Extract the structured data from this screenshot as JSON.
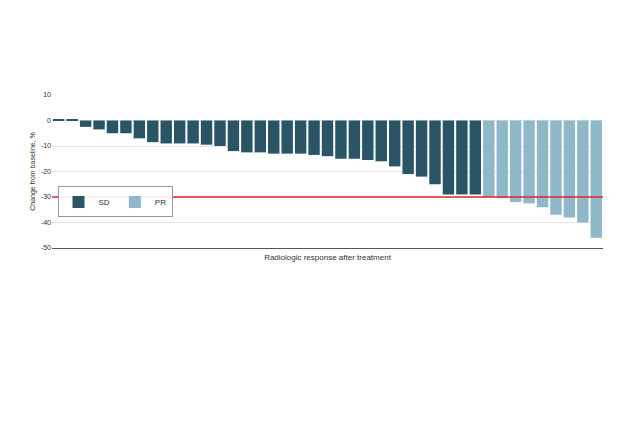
{
  "chart_data": {
    "type": "bar",
    "x_label": "Radiologic response after treatment",
    "y_label": "Change from baseline, %",
    "categories": [
      null,
      null,
      null,
      null,
      null,
      null,
      null,
      null,
      null,
      null,
      null,
      null,
      null,
      null,
      null,
      null,
      null,
      null,
      null,
      null,
      null,
      null,
      null,
      null,
      null,
      null,
      null,
      null,
      null,
      null,
      null,
      null,
      null,
      null,
      null,
      null,
      null,
      null,
      null,
      null,
      null
    ],
    "series": [
      {
        "name": "SD",
        "color": "#2a5566",
        "values": [
          0.5,
          0.2,
          -2.5,
          -3.5,
          -5,
          -5,
          -7,
          -8.5,
          -9,
          -9,
          -9,
          -9.5,
          -10,
          -12,
          -12.5,
          -12.5,
          -13,
          -13,
          -13,
          -13.5,
          -14,
          -15,
          -15,
          -15.5,
          -16,
          -18,
          -21,
          -22,
          -25,
          -29,
          -29,
          -29,
          null,
          null,
          null,
          null,
          null,
          null,
          null,
          null,
          null
        ]
      },
      {
        "name": "PR",
        "color": "#8fb8c9",
        "values": [
          null,
          null,
          null,
          null,
          null,
          null,
          null,
          null,
          null,
          null,
          null,
          null,
          null,
          null,
          null,
          null,
          null,
          null,
          null,
          null,
          null,
          null,
          null,
          null,
          null,
          null,
          null,
          null,
          null,
          null,
          null,
          null,
          -30,
          -30.5,
          -32,
          -32.5,
          -34,
          -37,
          -38,
          -40,
          -46
        ]
      }
    ],
    "hline": {
      "y": -30,
      "color": "#e0262b"
    },
    "ylim": [
      -50,
      10
    ],
    "yticks": [
      -50,
      -40,
      -30,
      -20,
      -10,
      0,
      10
    ],
    "grid": true,
    "legend": "bottom left",
    "tick_labels": "y"
  }
}
